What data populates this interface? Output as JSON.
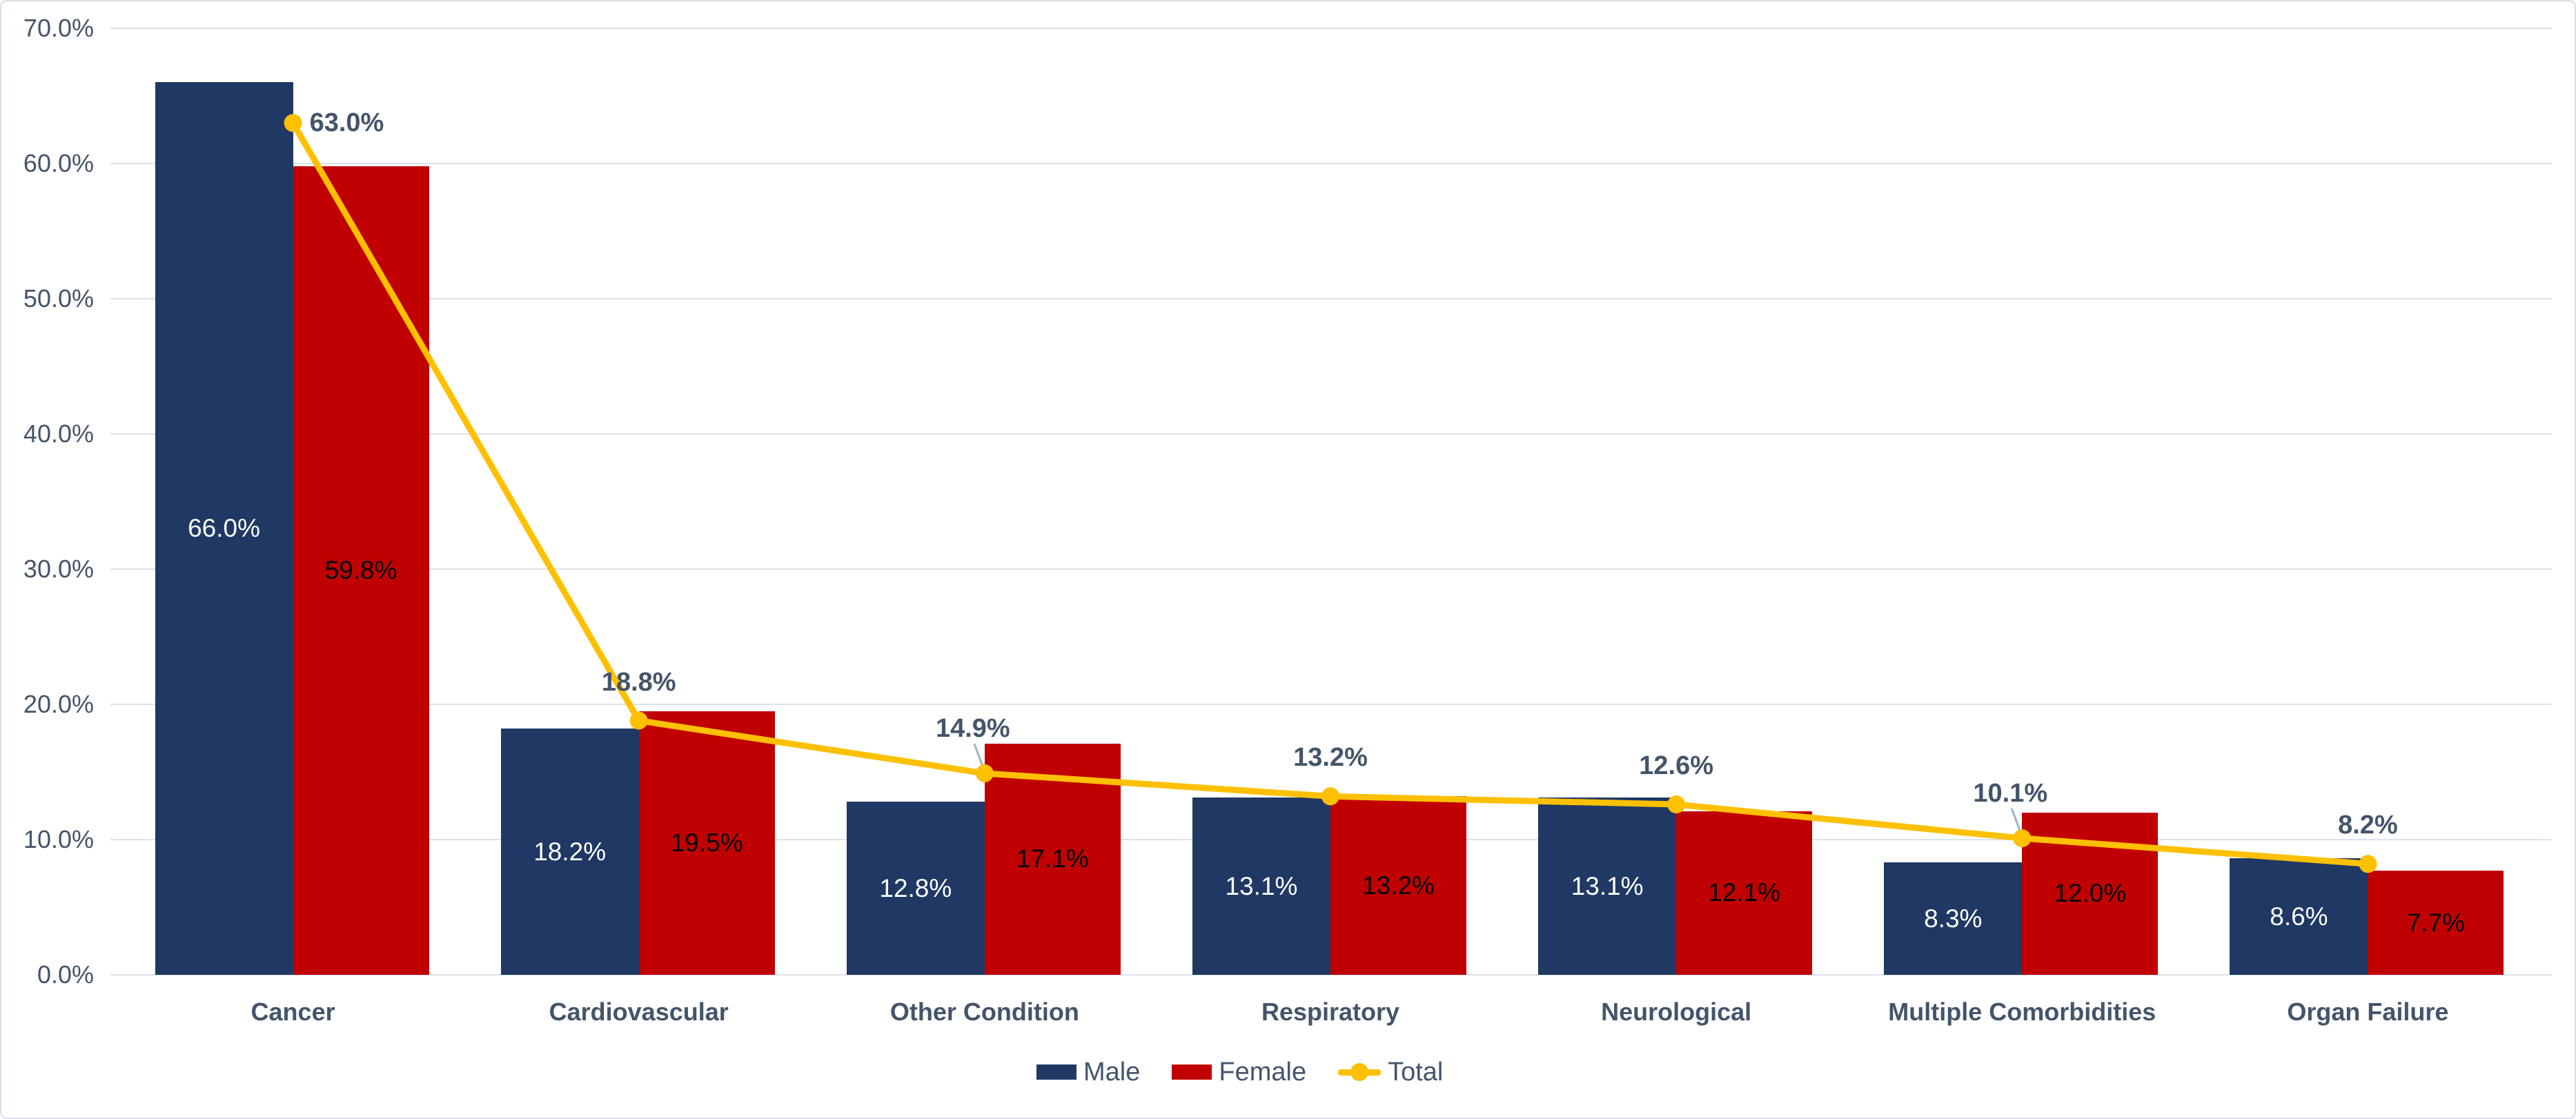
{
  "chart_data": {
    "type": "bar",
    "subtype": "combo-bar-line",
    "title": "",
    "xlabel": "",
    "ylabel": "",
    "categories": [
      "Cancer",
      "Cardiovascular",
      "Other Condition",
      "Respiratory",
      "Neurological",
      "Multiple Comorbidities",
      "Organ Failure"
    ],
    "series": [
      {
        "name": "Male",
        "type": "bar",
        "color": "#1F3864",
        "values": [
          66.0,
          18.2,
          12.8,
          13.1,
          13.1,
          8.3,
          8.6
        ],
        "data_labels": [
          "66.0%",
          "18.2%",
          "12.8%",
          "13.1%",
          "13.1%",
          "8.3%",
          "8.6%"
        ]
      },
      {
        "name": "Female",
        "type": "bar",
        "color": "#C00000",
        "values": [
          59.8,
          19.5,
          17.1,
          13.2,
          12.1,
          12.0,
          7.7
        ],
        "data_labels": [
          "59.8%",
          "19.5%",
          "17.1%",
          "13.2%",
          "12.1%",
          "12.0%",
          "7.7%"
        ]
      },
      {
        "name": "Total",
        "type": "line",
        "color": "#FFC000",
        "values": [
          63.0,
          18.8,
          14.9,
          13.2,
          12.6,
          10.1,
          8.2
        ],
        "data_labels": [
          "63.0%",
          "18.8%",
          "14.9%",
          "13.2%",
          "12.6%",
          "10.1%",
          "8.2%"
        ]
      }
    ],
    "ylim": [
      0,
      70
    ],
    "ytick_step": 10,
    "ytick_labels": [
      "0.0%",
      "10.0%",
      "20.0%",
      "30.0%",
      "40.0%",
      "50.0%",
      "60.0%",
      "70.0%"
    ],
    "grid": true,
    "legend_position": "bottom-center"
  },
  "colors": {
    "male_bar": "#1F3864",
    "female_bar": "#C00000",
    "total_line": "#FFC000",
    "axis_text": "#44546A",
    "total_label_text": "#44546A",
    "bar_label_male": "#FFFFFF",
    "bar_label_female": "#000000",
    "gridline": "#DCE1E9",
    "leader_line": "#9FB1C8",
    "background": "#FFFFFF"
  }
}
